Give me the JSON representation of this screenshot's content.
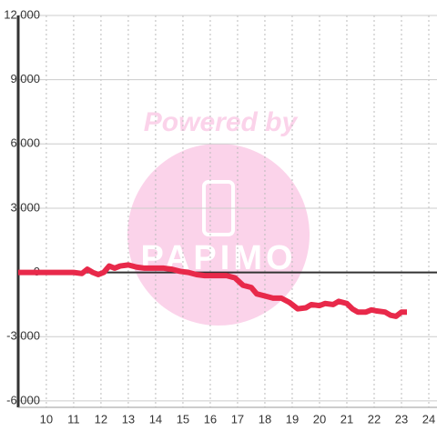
{
  "chart_data": {
    "type": "line",
    "watermark": {
      "line1": "Powered by",
      "line2": "PAPIMO"
    },
    "x": [
      8.97,
      11,
      11.3,
      11.5,
      11.7,
      11.9,
      12.1,
      12.3,
      12.5,
      12.7,
      13.0,
      13.3,
      13.6,
      14.0,
      14.3,
      14.6,
      14.9,
      15.2,
      15.5,
      15.8,
      16.2,
      16.6,
      16.9,
      17.2,
      17.5,
      17.7,
      18.0,
      18.3,
      18.6,
      18.9,
      19.2,
      19.5,
      19.7,
      20.0,
      20.2,
      20.5,
      20.7,
      21.0,
      21.2,
      21.4,
      21.7,
      21.9,
      22.1,
      22.4,
      22.6,
      22.8,
      23.0,
      23.2
    ],
    "series": [
      {
        "color": "#e8294a",
        "values": [
          0,
          0,
          -50,
          150,
          0,
          -100,
          0,
          300,
          200,
          300,
          350,
          250,
          200,
          200,
          200,
          150,
          50,
          0,
          -100,
          -150,
          -150,
          -150,
          -250,
          -600,
          -700,
          -1000,
          -1100,
          -1200,
          -1200,
          -1400,
          -1700,
          -1650,
          -1500,
          -1550,
          -1450,
          -1500,
          -1350,
          -1450,
          -1700,
          -1850,
          -1850,
          -1750,
          -1800,
          -1850,
          -2000,
          -2050,
          -1850,
          -1850
        ]
      }
    ],
    "xlim": [
      8.97,
      24.3
    ],
    "xticks": [
      10,
      11,
      12,
      13,
      14,
      15,
      16,
      17,
      18,
      19,
      20,
      21,
      22,
      23,
      24
    ],
    "ylim": [
      -6300,
      12000
    ],
    "yticks": [
      {
        "value": -6000,
        "label": "-6,000"
      },
      {
        "value": -3000,
        "label": "-3,000"
      },
      0,
      {
        "value": 3000,
        "label": "3,000"
      },
      {
        "value": 6000,
        "label": "6,000"
      },
      {
        "value": 9000,
        "label": "9,000"
      },
      {
        "value": 12000,
        "label": "12,000"
      }
    ],
    "grid": true
  }
}
